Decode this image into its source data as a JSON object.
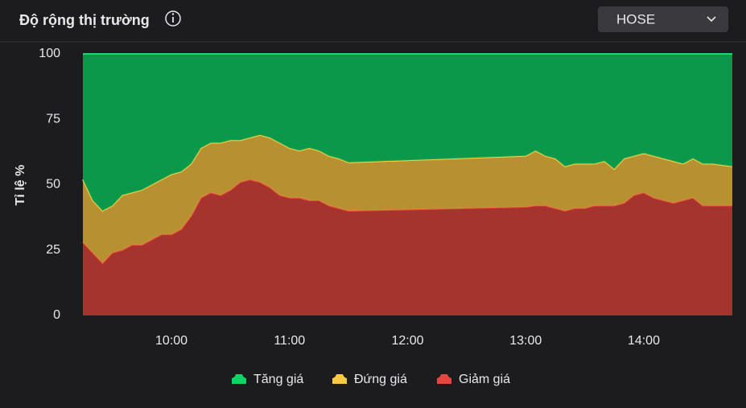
{
  "header": {
    "title": "Độ rộng thị trường",
    "dropdown": "HOSE"
  },
  "chart_data": {
    "type": "stacked_area",
    "y_label": "Tỉ lệ %",
    "x": [
      "09:15",
      "09:20",
      "09:25",
      "09:30",
      "09:35",
      "09:40",
      "09:45",
      "09:50",
      "09:55",
      "10:00",
      "10:05",
      "10:10",
      "10:15",
      "10:20",
      "10:25",
      "10:30",
      "10:35",
      "10:40",
      "10:45",
      "10:50",
      "10:55",
      "11:00",
      "11:05",
      "11:10",
      "11:15",
      "11:20",
      "11:25",
      "11:30",
      "13:00",
      "13:05",
      "13:10",
      "13:15",
      "13:20",
      "13:25",
      "13:30",
      "13:35",
      "13:40",
      "13:45",
      "13:50",
      "13:55",
      "14:00",
      "14:05",
      "14:10",
      "14:15",
      "14:20",
      "14:25",
      "14:30",
      "14:35",
      "14:40",
      "14:45"
    ],
    "xlim": [
      "09:15",
      "14:45"
    ],
    "xticks": [
      "10:00",
      "11:00",
      "12:00",
      "13:00",
      "14:00"
    ],
    "ylim": [
      0,
      100
    ],
    "yticks": [
      0,
      25,
      50,
      75,
      100
    ],
    "series": [
      {
        "name": "Tăng giá",
        "color": "#0ba34e",
        "values": [
          48,
          56,
          60,
          58,
          54,
          53,
          52,
          50,
          48,
          46,
          45,
          42,
          36,
          34,
          34,
          33,
          33,
          32,
          31,
          32,
          34,
          36,
          37,
          36,
          37,
          39,
          40,
          41.5,
          39,
          37,
          39,
          40,
          43,
          42,
          42,
          42,
          41,
          44,
          40,
          39,
          38,
          39,
          40,
          41,
          42,
          40,
          42,
          42,
          42.5,
          43
        ]
      },
      {
        "name": "Đứng giá",
        "color": "#c49a34",
        "values": [
          24,
          20,
          20,
          18,
          21,
          20,
          21,
          21,
          21,
          23,
          22,
          20,
          19,
          19,
          20,
          19,
          16,
          16,
          18,
          19,
          20,
          19,
          18,
          20,
          19,
          19,
          19,
          18.5,
          19.5,
          21,
          19,
          19,
          17,
          17,
          17,
          16,
          17,
          14,
          17,
          15,
          15,
          16,
          16,
          16,
          14,
          15,
          16,
          16,
          15.5,
          15
        ]
      },
      {
        "name": "Giảm giá",
        "color": "#b0362f",
        "values": [
          28,
          24,
          20,
          24,
          25,
          27,
          27,
          29,
          31,
          31,
          33,
          38,
          45,
          47,
          46,
          48,
          51,
          52,
          51,
          49,
          46,
          45,
          45,
          44,
          44,
          42,
          41,
          40,
          41.5,
          42,
          42,
          41,
          40,
          41,
          41,
          42,
          42,
          42,
          43,
          46,
          47,
          45,
          44,
          43,
          44,
          45,
          42,
          42,
          42,
          42
        ]
      }
    ]
  }
}
